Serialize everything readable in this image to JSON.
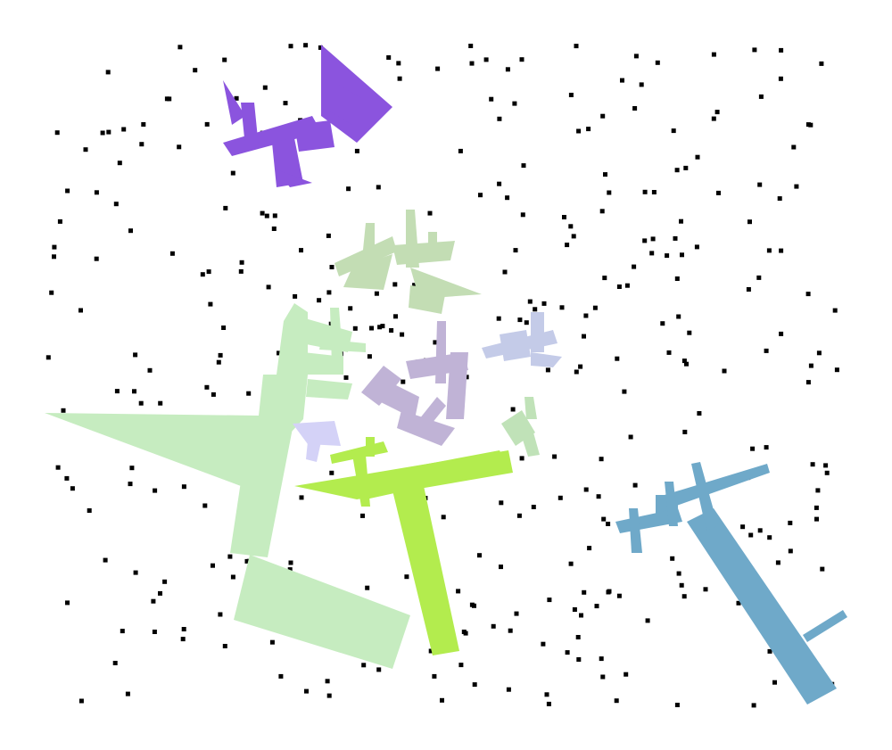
{
  "background_color": "#ffffff",
  "dot_color": "#000000",
  "shapes": [
    {
      "name": "purple-glyph-shape",
      "color": "#8b54de"
    },
    {
      "name": "pale-green-upper-glyph-shape",
      "color": "#c3ddb4"
    },
    {
      "name": "lavender-glyph-shape",
      "color": "#c0b3d6"
    },
    {
      "name": "periwinkle-glyph-shape",
      "color": "#c4cbe8"
    },
    {
      "name": "light-green-large-shape",
      "color": "#c6ecc0"
    },
    {
      "name": "lime-t-shape",
      "color": "#b3ec4e"
    },
    {
      "name": "light-lilac-small-shape",
      "color": "#d4d2f7"
    },
    {
      "name": "sage-small-shape",
      "color": "#c0e2b8"
    },
    {
      "name": "steel-blue-shape",
      "color": "#6fa9c9"
    }
  ]
}
